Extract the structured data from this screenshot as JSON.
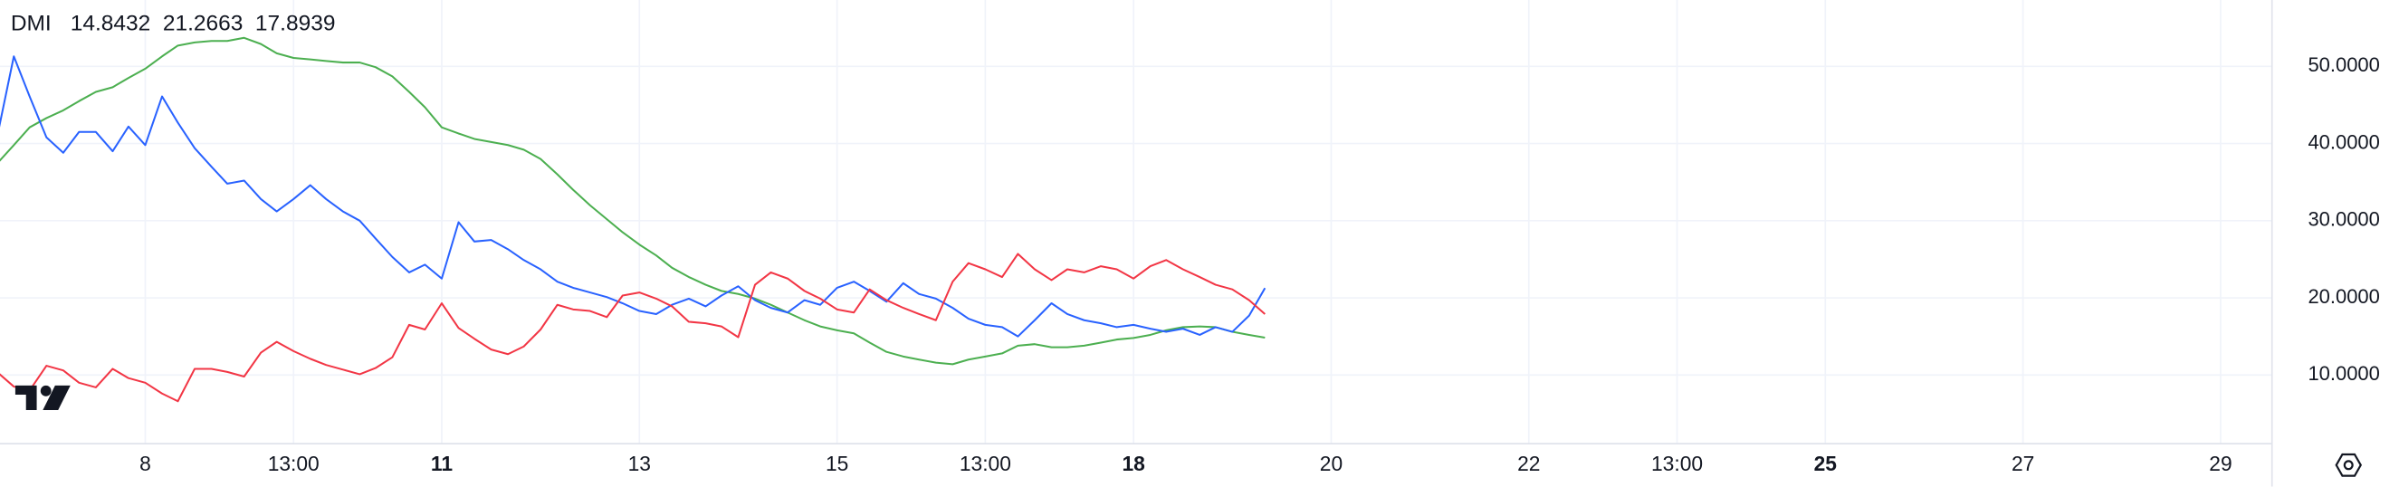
{
  "chart_data": {
    "type": "line",
    "title": "DMI",
    "x": [
      6.5,
      6.67,
      6.83,
      7,
      7.17,
      7.33,
      7.5,
      7.67,
      7.83,
      8,
      8.17,
      8.33,
      8.5,
      8.67,
      8.83,
      9,
      9.17,
      9.33,
      9.5,
      9.67,
      9.83,
      10,
      10.17,
      10.33,
      10.5,
      10.67,
      10.83,
      11,
      11.17,
      11.33,
      11.5,
      11.67,
      11.83,
      12,
      12.17,
      12.33,
      12.5,
      12.67,
      12.83,
      13,
      13.17,
      13.33,
      13.5,
      13.67,
      13.83,
      14,
      14.17,
      14.33,
      14.5,
      14.67,
      14.83,
      15,
      15.17,
      15.33,
      15.5,
      15.67,
      15.83,
      16,
      16.17,
      16.33,
      16.5,
      16.67,
      16.83,
      17,
      17.17,
      17.33,
      17.5,
      17.67,
      17.83,
      18,
      18.17,
      18.33,
      18.5,
      18.67,
      18.83,
      19,
      19.17,
      19.33
    ],
    "series": [
      {
        "color": "#4caf50",
        "values": [
          37.4,
          39.8,
          42.1,
          43.3,
          44.3,
          45.5,
          46.7,
          47.3,
          48.5,
          49.7,
          51.3,
          52.7,
          53.1,
          53.3,
          53.3,
          53.7,
          52.9,
          51.7,
          51.1,
          50.9,
          50.7,
          50.5,
          50.5,
          49.9,
          48.7,
          46.7,
          44.7,
          42.1,
          41.3,
          40.6,
          40.2,
          39.8,
          39.2,
          38.0,
          36.0,
          34.0,
          32.0,
          30.2,
          28.5,
          26.9,
          25.5,
          23.9,
          22.7,
          21.7,
          20.9,
          20.5,
          19.9,
          19.1,
          18.1,
          17.1,
          16.3,
          15.8,
          15.4,
          14.2,
          13.0,
          12.4,
          12.0,
          11.6,
          11.4,
          12.0,
          12.4,
          12.8,
          13.8,
          14.0,
          13.6,
          13.6,
          13.8,
          14.2,
          14.6,
          14.8,
          15.2,
          15.8,
          16.2,
          16.3,
          16.2,
          15.6,
          15.2,
          14.8432
        ]
      },
      {
        "color": "#2962ff",
        "values": [
          40.8,
          51.3,
          46.1,
          40.8,
          38.8,
          41.5,
          41.5,
          39.0,
          42.2,
          39.8,
          46.1,
          42.7,
          39.4,
          37.0,
          34.8,
          35.2,
          32.8,
          31.2,
          32.8,
          34.6,
          32.8,
          31.2,
          30.0,
          27.7,
          25.3,
          23.3,
          24.3,
          22.5,
          29.8,
          27.3,
          27.5,
          26.3,
          24.9,
          23.7,
          22.1,
          21.3,
          20.7,
          20.1,
          19.3,
          18.3,
          17.9,
          19.1,
          19.9,
          18.9,
          20.3,
          21.5,
          19.7,
          18.7,
          18.1,
          19.7,
          19.1,
          21.3,
          22.1,
          20.9,
          19.5,
          21.9,
          20.5,
          19.9,
          18.7,
          17.3,
          16.5,
          16.2,
          15.0,
          17.1,
          19.3,
          17.9,
          17.1,
          16.7,
          16.2,
          16.5,
          16.0,
          15.6,
          16.0,
          15.2,
          16.2,
          15.6,
          17.7,
          21.2663
        ]
      },
      {
        "color": "#f23645",
        "values": [
          10.4,
          8.5,
          8.0,
          11.2,
          10.6,
          9.0,
          8.4,
          10.8,
          9.6,
          9.0,
          7.6,
          6.6,
          10.8,
          10.8,
          10.4,
          9.8,
          12.9,
          14.3,
          13.1,
          12.1,
          11.3,
          10.7,
          10.1,
          10.9,
          12.3,
          16.5,
          15.9,
          19.3,
          16.1,
          14.7,
          13.3,
          12.7,
          13.7,
          15.9,
          19.1,
          18.5,
          18.3,
          17.5,
          20.3,
          20.7,
          19.9,
          18.9,
          16.9,
          16.7,
          16.3,
          14.9,
          21.7,
          23.3,
          22.5,
          20.9,
          19.9,
          18.5,
          18.1,
          21.1,
          19.7,
          18.7,
          17.9,
          17.1,
          22.1,
          24.5,
          23.7,
          22.7,
          25.7,
          23.7,
          22.3,
          23.7,
          23.3,
          24.1,
          23.7,
          22.5,
          24.1,
          24.9,
          23.7,
          22.7,
          21.7,
          21.1,
          19.7,
          17.8939
        ]
      }
    ],
    "xlim": [
      6.53,
      29.52
    ],
    "xticks": [
      8,
      {
        "value": 9.5,
        "label": "13:00"
      },
      11,
      13,
      15,
      {
        "value": 16.5,
        "label": "13:00"
      },
      18,
      20,
      22,
      {
        "value": 23.5,
        "label": "13:00"
      },
      25,
      27,
      29
    ],
    "xticks_bold": [
      11,
      18,
      25
    ],
    "ylim": [
      1.1,
      58.6
    ],
    "yticks": [
      {
        "value": 10,
        "label": "10.0000"
      },
      {
        "value": 20,
        "label": "20.0000"
      },
      {
        "value": 30,
        "label": "30.0000"
      },
      {
        "value": 40,
        "label": "40.0000"
      },
      {
        "value": 50,
        "label": "50.0000"
      }
    ],
    "grid": true
  }
}
